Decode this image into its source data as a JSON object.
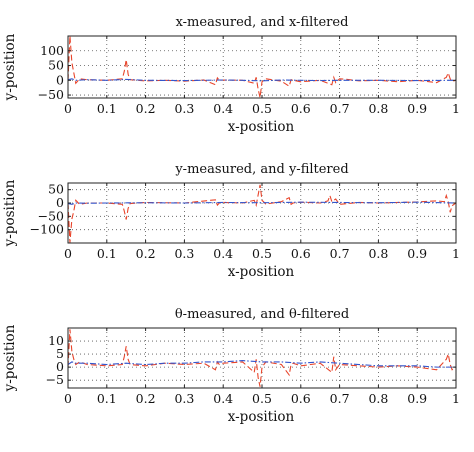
{
  "chart_data": [
    {
      "type": "line",
      "title": "x-measured, and x-filtered",
      "xlabel": "x-position",
      "ylabel": "y-position",
      "xlim": [
        0,
        1
      ],
      "ylim": [
        -60,
        150
      ],
      "xticks": [
        0,
        0.1,
        0.2,
        0.3,
        0.4,
        0.5,
        0.6,
        0.7,
        0.8,
        0.9,
        1
      ],
      "xtick_labels": [
        "0",
        "0.1",
        "0.2",
        "0.3",
        "0.4",
        "0.5",
        "0.6",
        "0.7",
        "0.8",
        "0.9",
        "1"
      ],
      "yticks": [
        -50,
        0,
        50,
        100
      ],
      "ytick_labels": [
        "−50",
        "0",
        "50",
        "100"
      ],
      "grid": true,
      "series": [
        {
          "color": "#e8452b",
          "dash": "dashed",
          "x": [
            0,
            0.005,
            0.01,
            0.015,
            0.02,
            0.03,
            0.05,
            0.1,
            0.14,
            0.145,
            0.15,
            0.155,
            0.16,
            0.2,
            0.25,
            0.3,
            0.35,
            0.38,
            0.385,
            0.39,
            0.4,
            0.45,
            0.48,
            0.485,
            0.49,
            0.495,
            0.5,
            0.51,
            0.55,
            0.57,
            0.575,
            0.58,
            0.6,
            0.65,
            0.68,
            0.685,
            0.69,
            0.7,
            0.72,
            0.75,
            0.8,
            0.85,
            0.9,
            0.95,
            0.975,
            0.98,
            0.985,
            0.99,
            1
          ],
          "y": [
            0,
            150,
            60,
            25,
            -10,
            5,
            2,
            0,
            5,
            30,
            70,
            20,
            2,
            -2,
            0,
            -3,
            1,
            -15,
            8,
            0,
            1,
            0,
            -10,
            10,
            -30,
            -58,
            -5,
            5,
            -3,
            -20,
            2,
            0,
            -5,
            0,
            -15,
            10,
            -8,
            5,
            3,
            -2,
            0,
            -5,
            0,
            -8,
            10,
            25,
            5,
            -3,
            0
          ]
        },
        {
          "color": "#3355cc",
          "dash": "dashdot",
          "x": [
            0,
            0.01,
            0.02,
            0.05,
            0.1,
            0.15,
            0.2,
            0.3,
            0.4,
            0.45,
            0.5,
            0.55,
            0.6,
            0.65,
            0.7,
            0.8,
            0.9,
            1
          ],
          "y": [
            2,
            5,
            0,
            2,
            0,
            3,
            0,
            -1,
            1,
            0,
            -2,
            1,
            0,
            -1,
            0,
            0,
            -1,
            0
          ]
        }
      ]
    },
    {
      "type": "line",
      "title": "y-measured, and y-filtered",
      "xlabel": "x-position",
      "ylabel": "y-position",
      "xlim": [
        0,
        1
      ],
      "ylim": [
        -150,
        75
      ],
      "xticks": [
        0,
        0.1,
        0.2,
        0.3,
        0.4,
        0.5,
        0.6,
        0.7,
        0.8,
        0.9,
        1
      ],
      "xtick_labels": [
        "0",
        "0.1",
        "0.2",
        "0.3",
        "0.4",
        "0.5",
        "0.6",
        "0.7",
        "0.8",
        "0.9",
        "1"
      ],
      "yticks": [
        -100,
        -50,
        0,
        50
      ],
      "ytick_labels": [
        "−100",
        "−50",
        "0",
        "50"
      ],
      "grid": true,
      "series": [
        {
          "color": "#e8452b",
          "dash": "dashed",
          "x": [
            0,
            0.005,
            0.01,
            0.015,
            0.02,
            0.03,
            0.05,
            0.1,
            0.14,
            0.145,
            0.15,
            0.155,
            0.16,
            0.2,
            0.3,
            0.38,
            0.385,
            0.39,
            0.4,
            0.45,
            0.48,
            0.485,
            0.49,
            0.495,
            0.5,
            0.51,
            0.55,
            0.57,
            0.575,
            0.58,
            0.6,
            0.65,
            0.67,
            0.675,
            0.68,
            0.69,
            0.7,
            0.75,
            0.8,
            0.9,
            0.95,
            0.97,
            0.975,
            0.98,
            0.985,
            0.99,
            1
          ],
          "y": [
            0,
            -148,
            -60,
            -30,
            10,
            -5,
            0,
            0,
            -5,
            -30,
            -62,
            -20,
            -2,
            2,
            0,
            12,
            -8,
            0,
            2,
            0,
            10,
            -8,
            30,
            68,
            10,
            -4,
            5,
            20,
            -5,
            0,
            3,
            0,
            8,
            28,
            5,
            15,
            -5,
            2,
            0,
            4,
            8,
            5,
            28,
            5,
            -35,
            -10,
            0
          ]
        },
        {
          "color": "#3355cc",
          "dash": "dashdot",
          "x": [
            0,
            0.01,
            0.02,
            0.05,
            0.1,
            0.2,
            0.3,
            0.4,
            0.5,
            0.6,
            0.7,
            0.8,
            0.9,
            1
          ],
          "y": [
            -2,
            -5,
            0,
            -1,
            0,
            1,
            0,
            2,
            1,
            3,
            2,
            1,
            3,
            0
          ]
        }
      ]
    },
    {
      "type": "line",
      "title": "θ-measured, and θ-filtered",
      "xlabel": "x-position",
      "ylabel": "y-position",
      "xlim": [
        0,
        1
      ],
      "ylim": [
        -8,
        15
      ],
      "xticks": [
        0,
        0.1,
        0.2,
        0.3,
        0.4,
        0.5,
        0.6,
        0.7,
        0.8,
        0.9,
        1
      ],
      "xtick_labels": [
        "0",
        "0.1",
        "0.2",
        "0.3",
        "0.4",
        "0.5",
        "0.6",
        "0.7",
        "0.8",
        "0.9",
        "1"
      ],
      "yticks": [
        -5,
        0,
        5,
        10
      ],
      "ytick_labels": [
        "−5",
        "0",
        "5",
        "10"
      ],
      "grid": true,
      "series": [
        {
          "color": "#e8452b",
          "dash": "dashed",
          "x": [
            0,
            0.005,
            0.01,
            0.015,
            0.02,
            0.03,
            0.05,
            0.1,
            0.14,
            0.145,
            0.15,
            0.155,
            0.16,
            0.2,
            0.25,
            0.3,
            0.35,
            0.38,
            0.385,
            0.39,
            0.4,
            0.45,
            0.48,
            0.485,
            0.49,
            0.495,
            0.5,
            0.51,
            0.55,
            0.57,
            0.575,
            0.58,
            0.6,
            0.65,
            0.68,
            0.685,
            0.69,
            0.7,
            0.75,
            0.8,
            0.85,
            0.9,
            0.95,
            0.975,
            0.98,
            0.985,
            0.99,
            1
          ],
          "y": [
            0,
            14.5,
            6,
            3,
            1,
            2,
            1,
            0.5,
            1,
            4,
            8,
            3,
            1,
            0.5,
            1.5,
            1,
            1.5,
            -1,
            2,
            1,
            1.5,
            2,
            -2,
            3,
            -4,
            -7.5,
            0,
            2,
            1,
            -3,
            1,
            1.5,
            0.5,
            1.5,
            -2,
            4,
            -1,
            1,
            0.5,
            0,
            0.5,
            0,
            -1,
            3,
            5,
            1,
            -1,
            0
          ]
        },
        {
          "color": "#3355cc",
          "dash": "dashdot",
          "x": [
            0,
            0.01,
            0.02,
            0.05,
            0.1,
            0.15,
            0.2,
            0.25,
            0.3,
            0.35,
            0.4,
            0.45,
            0.5,
            0.55,
            0.6,
            0.65,
            0.7,
            0.75,
            0.8,
            0.85,
            0.9,
            0.95,
            1
          ],
          "y": [
            1,
            2,
            1.5,
            1.5,
            1,
            1.5,
            1,
            1.5,
            1.5,
            2,
            2,
            2.5,
            2,
            2,
            1.5,
            2,
            1.5,
            1,
            0.5,
            0.5,
            0.5,
            0,
            0
          ]
        }
      ]
    }
  ]
}
